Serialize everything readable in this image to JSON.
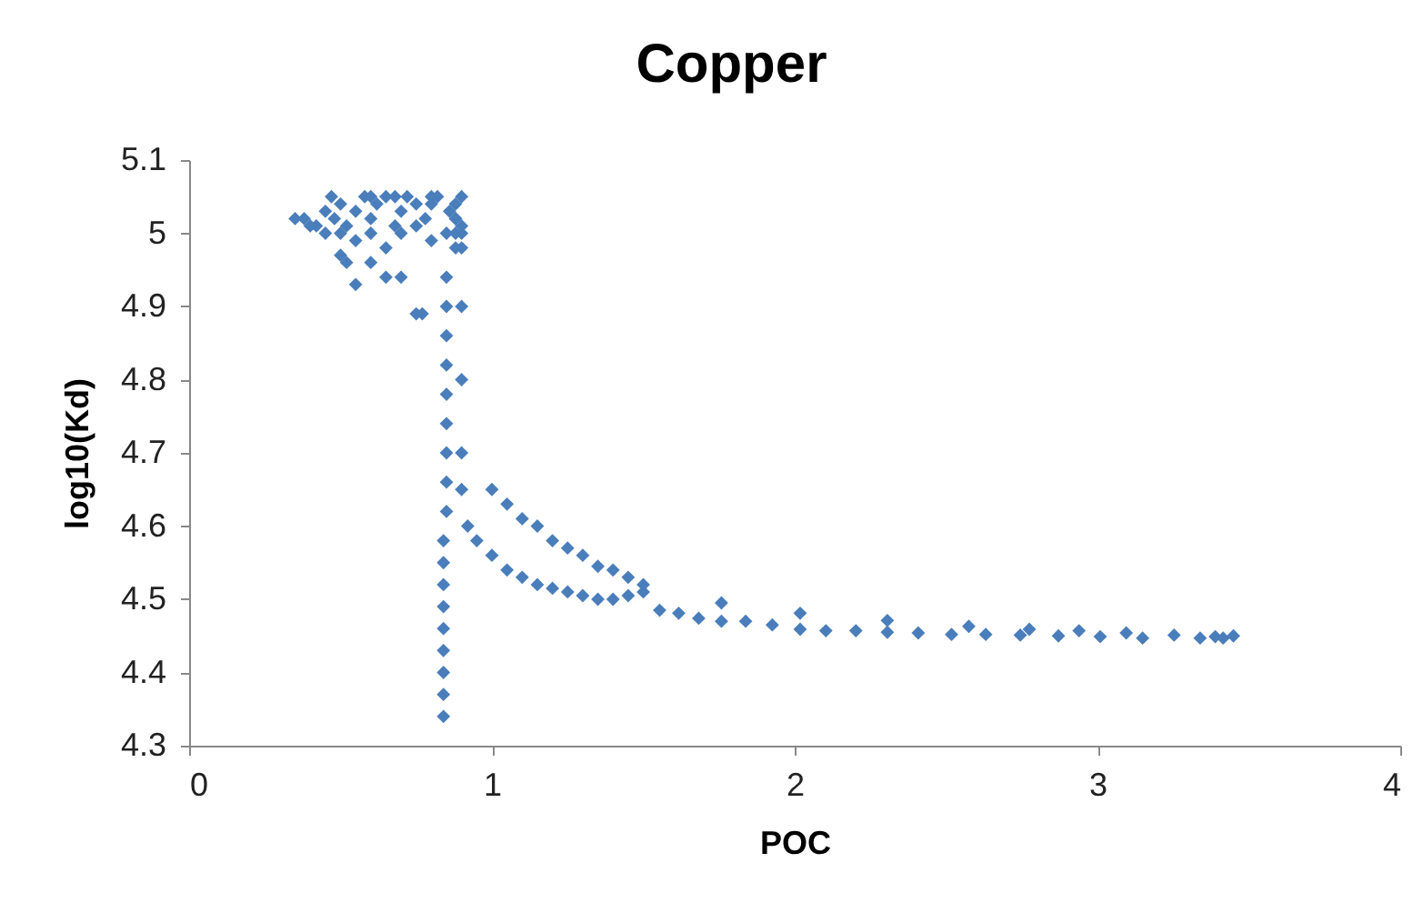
{
  "chart_data": {
    "type": "scatter",
    "title": "Copper",
    "xlabel": "POC",
    "ylabel": "log10(Kd)",
    "xlim": [
      0,
      4
    ],
    "xticks": [
      0,
      1,
      2,
      3,
      4
    ],
    "ylim": [
      4.3,
      5.1
    ],
    "yticks": [
      4.3,
      4.4,
      4.5,
      4.6,
      4.7,
      4.8,
      4.9,
      5,
      5.1
    ],
    "grid": false,
    "marker": "diamond",
    "series": [
      {
        "color": "#4a7ebb",
        "x": [
          0.35,
          0.38,
          0.42,
          0.45,
          0.48,
          0.5,
          0.52,
          0.55,
          0.58,
          0.6,
          0.62,
          0.65,
          0.68,
          0.7,
          0.72,
          0.75,
          0.78,
          0.8,
          0.82,
          0.86,
          0.88,
          0.9,
          0.4,
          0.45,
          0.5,
          0.55,
          0.6,
          0.65,
          0.7,
          0.75,
          0.8,
          0.85,
          0.9,
          0.47,
          0.5,
          0.52,
          0.55,
          0.6,
          0.65,
          0.7,
          0.75,
          0.77,
          0.6,
          0.68,
          0.8,
          0.9,
          0.84,
          0.84,
          0.84,
          0.84,
          0.84,
          0.84,
          0.84,
          0.84,
          0.84,
          0.85,
          0.85,
          0.85,
          0.85,
          0.85,
          0.85,
          0.85,
          0.85,
          0.85,
          0.88,
          0.88,
          0.88,
          0.88,
          0.9,
          0.9,
          0.9,
          0.9,
          0.9,
          1.0,
          1.05,
          1.1,
          1.15,
          1.2,
          1.25,
          1.3,
          1.35,
          1.4,
          1.45,
          1.5,
          0.92,
          0.95,
          1.0,
          1.05,
          1.1,
          1.15,
          1.2,
          1.25,
          1.3,
          1.35,
          1.4,
          1.45,
          1.5,
          1.554,
          1.617,
          1.683,
          1.758,
          1.758,
          1.838,
          1.926,
          2.018,
          2.018,
          2.103,
          2.202,
          2.306,
          2.306,
          2.408,
          2.518,
          2.575,
          2.631,
          2.745,
          2.775,
          2.871,
          2.939,
          3.009,
          3.095,
          3.149,
          3.253,
          3.339,
          3.389,
          3.415,
          3.449
        ],
        "values": [
          5.02,
          5.02,
          5.01,
          5.03,
          5.02,
          5.04,
          5.01,
          5.03,
          5.05,
          5.02,
          5.04,
          5.05,
          5.01,
          5.03,
          5.05,
          5.04,
          5.02,
          5.04,
          5.05,
          5.03,
          5.02,
          5.05,
          5.01,
          5.0,
          5.0,
          4.99,
          5.0,
          4.98,
          5.0,
          5.01,
          4.99,
          5.0,
          5.01,
          5.05,
          4.97,
          4.96,
          4.93,
          4.96,
          4.94,
          4.94,
          4.89,
          4.89,
          5.05,
          5.05,
          5.05,
          4.98,
          4.34,
          4.37,
          4.4,
          4.43,
          4.46,
          4.49,
          4.52,
          4.55,
          4.58,
          4.62,
          4.66,
          4.7,
          4.74,
          4.78,
          4.82,
          4.86,
          4.9,
          4.94,
          4.98,
          5.0,
          5.02,
          5.04,
          4.65,
          4.7,
          4.8,
          4.9,
          5.0,
          4.65,
          4.63,
          4.61,
          4.6,
          4.58,
          4.57,
          4.56,
          4.545,
          4.54,
          4.53,
          4.52,
          4.6,
          4.58,
          4.56,
          4.54,
          4.53,
          4.52,
          4.515,
          4.51,
          4.505,
          4.5,
          4.5,
          4.505,
          4.51,
          4.485,
          4.481,
          4.474,
          4.495,
          4.47,
          4.47,
          4.465,
          4.481,
          4.459,
          4.457,
          4.457,
          4.471,
          4.455,
          4.454,
          4.452,
          4.463,
          4.452,
          4.451,
          4.459,
          4.45,
          4.457,
          4.449,
          4.454,
          4.447,
          4.451,
          4.447,
          4.449,
          4.447,
          4.45
        ]
      }
    ]
  }
}
